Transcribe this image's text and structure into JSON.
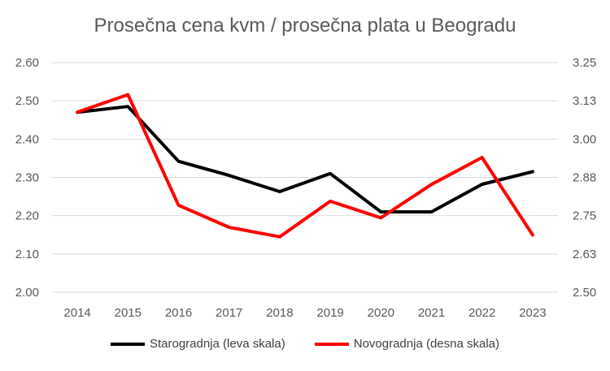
{
  "chart_data": {
    "type": "line",
    "title": "Prosečna cena kvm / prosečna plata u Beogradu",
    "categories": [
      "2014",
      "2015",
      "2016",
      "2017",
      "2018",
      "2019",
      "2020",
      "2021",
      "2022",
      "2023"
    ],
    "y_left": {
      "ylim": [
        2.0,
        2.6
      ],
      "ticks": [
        "2.00",
        "2.10",
        "2.20",
        "2.30",
        "2.40",
        "2.50",
        "2.60"
      ]
    },
    "y_right": {
      "ylim": [
        2.5,
        3.25
      ],
      "ticks": [
        "2.50",
        "2.63",
        "2.75",
        "2.88",
        "3.00",
        "3.13",
        "3.25"
      ]
    },
    "grid": true,
    "legend_position": "bottom",
    "series": [
      {
        "name": "Starogradnja (leva skala)",
        "axis": "left",
        "color": "#000000",
        "values": [
          2.47,
          2.485,
          2.342,
          2.305,
          2.263,
          2.31,
          2.21,
          2.21,
          2.282,
          2.315
        ]
      },
      {
        "name": "Novogradnja (desna skala)",
        "axis": "right",
        "color": "#ff0000",
        "values": [
          3.088,
          3.145,
          2.784,
          2.712,
          2.681,
          2.797,
          2.743,
          2.852,
          2.94,
          2.687
        ]
      }
    ]
  }
}
